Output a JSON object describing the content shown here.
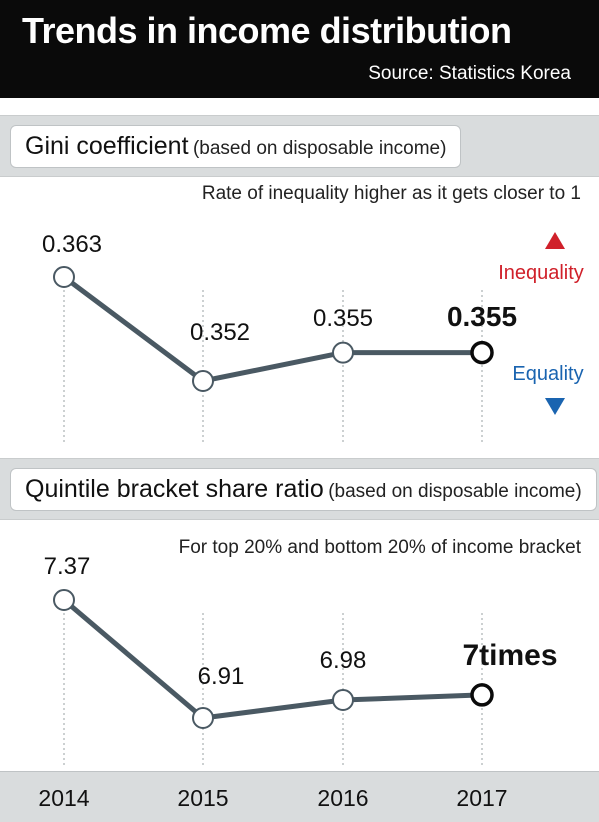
{
  "header": {
    "title": "Trends in income distribution",
    "source": "Source: Statistics Korea"
  },
  "gini": {
    "title": "Gini coefficient",
    "subtitle": "(based on disposable income)",
    "note": "Rate of inequality higher as it gets closer to 1",
    "legend_up": "Inequality",
    "legend_down": "Equality",
    "up_color": "#d0202a",
    "down_color": "#1a64b0"
  },
  "quintile": {
    "title": "Quintile bracket share ratio",
    "subtitle": "(based on disposable income)",
    "note": "For top 20% and bottom 20% of income bracket"
  },
  "chart_data": [
    {
      "type": "line",
      "title": "Gini coefficient",
      "categories": [
        "2014",
        "2015",
        "2016",
        "2017"
      ],
      "values": [
        0.363,
        0.352,
        0.355,
        0.355
      ],
      "labels": [
        "0.363",
        "0.352",
        "0.355",
        "0.355"
      ],
      "ylim": [
        0.348,
        0.366
      ],
      "line_color": "#4a5963"
    },
    {
      "type": "line",
      "title": "Quintile bracket share ratio",
      "categories": [
        "2014",
        "2015",
        "2016",
        "2017"
      ],
      "values": [
        7.37,
        6.91,
        6.98,
        7.0
      ],
      "labels": [
        "7.37",
        "6.91",
        "6.98",
        "7times"
      ],
      "ylim": [
        6.87,
        7.4
      ],
      "line_color": "#4a5963"
    }
  ],
  "x_axis": {
    "categories": [
      "2014",
      "2015",
      "2016",
      "2017"
    ]
  }
}
